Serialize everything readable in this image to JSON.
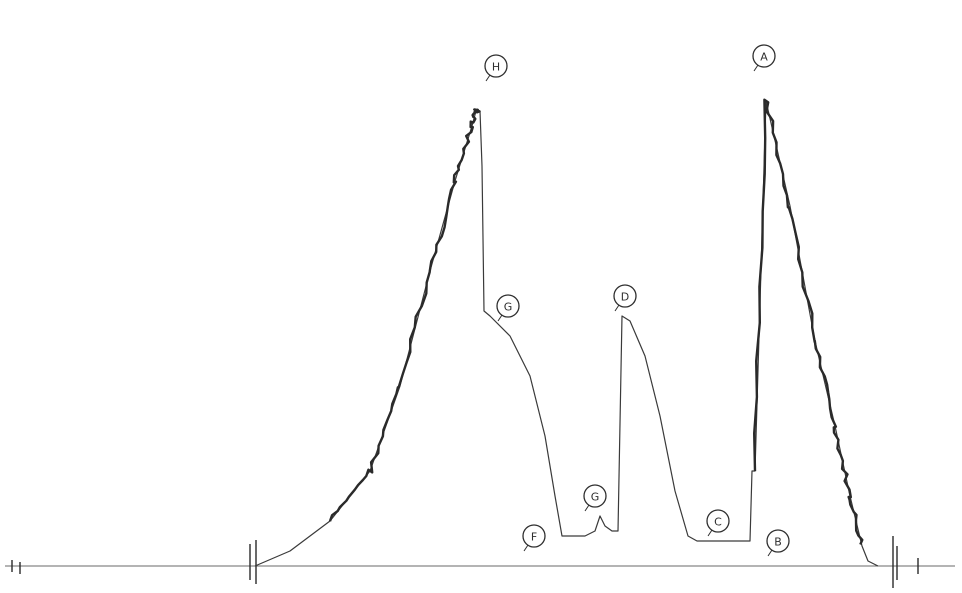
{
  "chart_data": {
    "type": "line",
    "title": "",
    "xlabel": "",
    "ylabel": "",
    "grid": false,
    "xlim": [
      0,
      962
    ],
    "ylim": [
      0,
      100
    ],
    "series": [
      {
        "x": [
          255,
          290,
          330,
          370,
          400,
          430,
          455,
          472,
          476,
          480,
          482,
          484,
          490,
          510,
          530,
          545,
          555,
          562,
          570,
          585,
          595,
          600,
          605,
          612,
          618,
          622,
          630,
          645,
          660,
          675,
          688,
          697,
          710,
          735,
          750,
          752,
          755,
          766,
          790,
          815,
          835,
          850,
          862,
          868,
          878
        ],
        "y": [
          0,
          3,
          9,
          19,
          36,
          59,
          77,
          88,
          91,
          91,
          80,
          51,
          50,
          46,
          38,
          26,
          14,
          6,
          6,
          6,
          7,
          10,
          8,
          7,
          7,
          50,
          49,
          42,
          30,
          15,
          6,
          5,
          5,
          5,
          5,
          19,
          19,
          93,
          72,
          45,
          28,
          14,
          4,
          1,
          0
        ]
      }
    ],
    "annotations": [
      {
        "label": "H",
        "x": 496,
        "y": 100
      },
      {
        "label": "G",
        "x": 508,
        "y": 52
      },
      {
        "label": "D",
        "x": 625,
        "y": 54
      },
      {
        "label": "G",
        "x": 595,
        "y": 14
      },
      {
        "label": "F",
        "x": 534,
        "y": 6
      },
      {
        "label": "C",
        "x": 718,
        "y": 9
      },
      {
        "label": "B",
        "x": 778,
        "y": 5
      },
      {
        "label": "A",
        "x": 764,
        "y": 102
      }
    ]
  }
}
